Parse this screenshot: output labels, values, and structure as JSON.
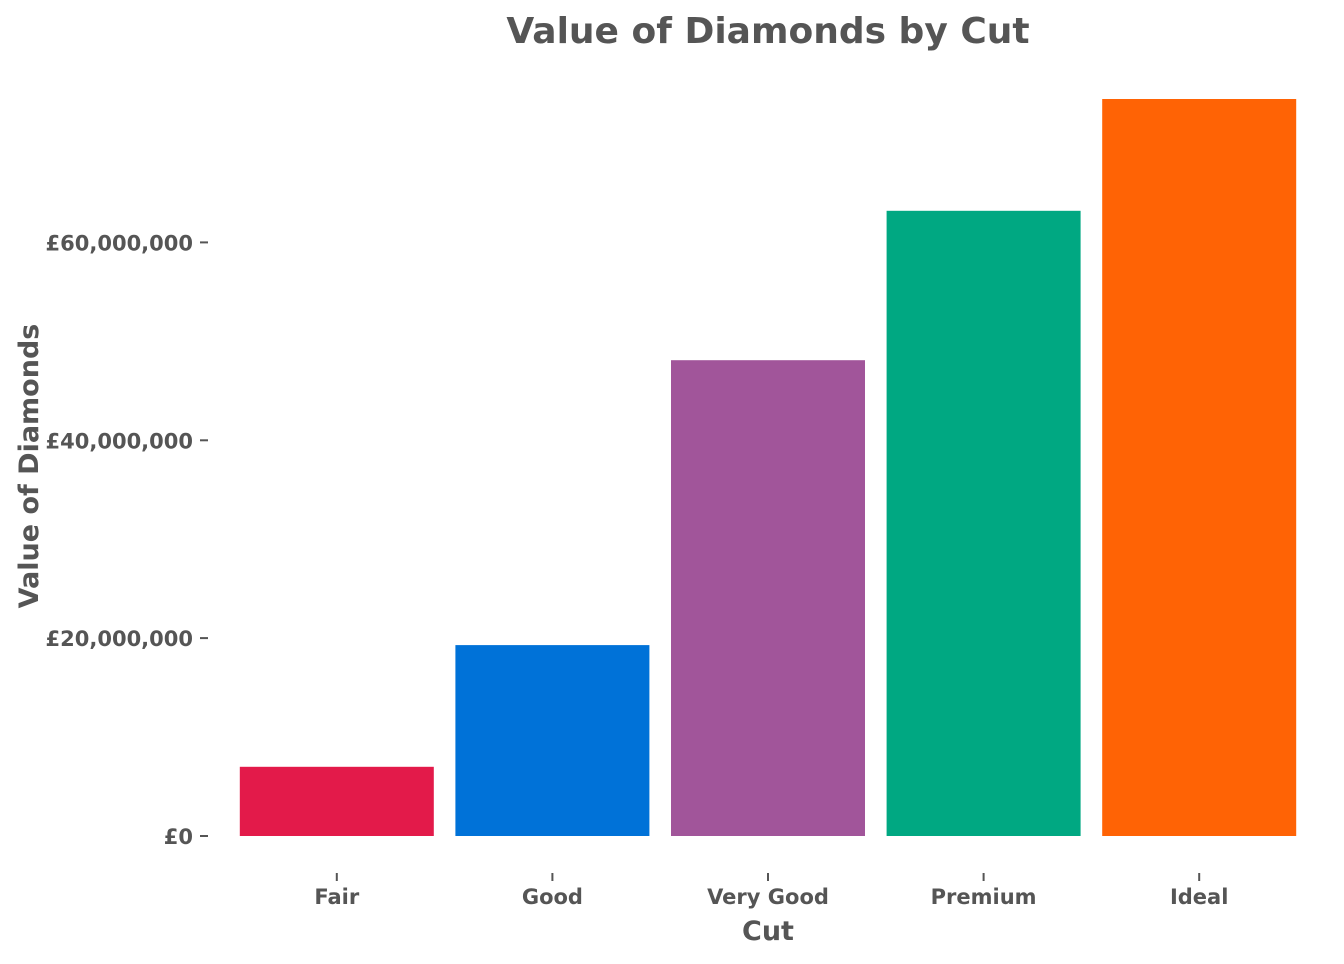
{
  "chart_data": {
    "type": "bar",
    "title": "Value of Diamonds by Cut",
    "xlabel": "Cut",
    "ylabel": "Value of Diamonds",
    "categories": [
      "Fair",
      "Good",
      "Very Good",
      "Premium",
      "Ideal"
    ],
    "values": [
      7000000,
      19300000,
      48100000,
      63200000,
      74500000
    ],
    "colors": [
      "#E31A4A",
      "#0072D8",
      "#A1559A",
      "#00A882",
      "#FF6305"
    ],
    "ylim": [
      0,
      74500000
    ],
    "yticks": [
      0,
      20000000,
      40000000,
      60000000
    ],
    "ytick_labels": [
      "£0",
      "£20,000,000",
      "£40,000,000",
      "£60,000,000"
    ],
    "grid": false,
    "legend": "none"
  }
}
